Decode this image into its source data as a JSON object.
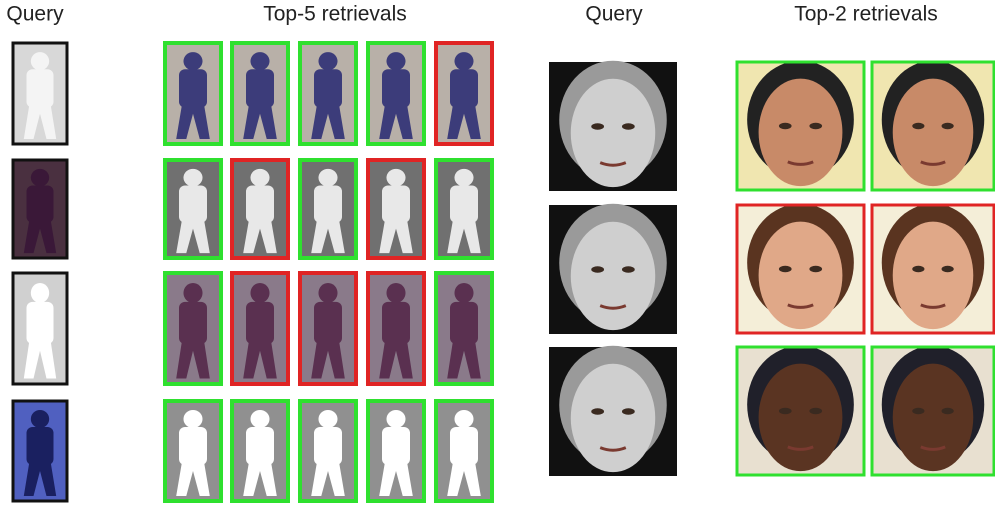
{
  "left_panel": {
    "query_heading": "Query",
    "retrieval_heading": "Top-5 retrievals",
    "rows": [
      {
        "results": [
          "#2fe02f",
          "#2fe02f",
          "#2fe02f",
          "#2fe02f",
          "#e02424"
        ]
      },
      {
        "results": [
          "#2fe02f",
          "#e02424",
          "#2fe02f",
          "#e02424",
          "#2fe02f"
        ]
      },
      {
        "results": [
          "#2fe02f",
          "#e02424",
          "#e02424",
          "#e02424",
          "#2fe02f"
        ]
      },
      {
        "results": [
          "#2fe02f",
          "#2fe02f",
          "#2fe02f",
          "#2fe02f",
          "#2fe02f"
        ]
      }
    ]
  },
  "right_panel": {
    "query_heading": "Query",
    "retrieval_heading": "Top-2 retrievals",
    "rows": [
      {
        "results": [
          "#2fe02f",
          "#2fe02f"
        ]
      },
      {
        "results": [
          "#e02424",
          "#e02424"
        ]
      },
      {
        "results": [
          "#2fe02f",
          "#2fe02f"
        ]
      }
    ]
  }
}
